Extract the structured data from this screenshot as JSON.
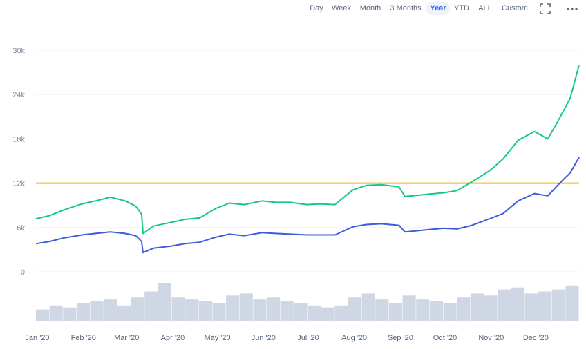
{
  "toolbar": {
    "ranges": [
      "Day",
      "Week",
      "Month",
      "3 Months",
      "Year",
      "YTD",
      "ALL",
      "Custom"
    ],
    "active_range": "Year",
    "icons": [
      "fullscreen-icon",
      "more-options-icon"
    ]
  },
  "colors": {
    "series_green": "#16c784",
    "series_blue": "#3b5bdb",
    "threshold": "#f5b51b",
    "volume": "#cfd6e4",
    "grid": "#eff2f5"
  },
  "chart_data": {
    "type": "line",
    "title": "",
    "xlabel": "",
    "ylabel": "",
    "ylim": [
      0,
      30000
    ],
    "yticks": [
      0,
      6000,
      12000,
      18000,
      24000,
      30000
    ],
    "ytick_labels": [
      "0",
      "6k",
      "12k",
      "18k",
      "24k",
      "30k"
    ],
    "xticks": [
      "Jan '20",
      "Feb '20",
      "Mar '20",
      "Apr '20",
      "May '20",
      "Jun '20",
      "Jul '20",
      "Aug '20",
      "Sep '20",
      "Oct '20",
      "Nov '20",
      "Dec '20"
    ],
    "x": [
      "2020-01-01",
      "2020-01-10",
      "2020-01-20",
      "2020-02-01",
      "2020-02-10",
      "2020-02-20",
      "2020-03-01",
      "2020-03-08",
      "2020-03-12",
      "2020-03-13",
      "2020-03-20",
      "2020-04-01",
      "2020-04-10",
      "2020-04-20",
      "2020-05-01",
      "2020-05-10",
      "2020-05-20",
      "2020-06-01",
      "2020-06-10",
      "2020-06-20",
      "2020-07-01",
      "2020-07-10",
      "2020-07-20",
      "2020-08-01",
      "2020-08-10",
      "2020-08-20",
      "2020-09-01",
      "2020-09-05",
      "2020-09-20",
      "2020-10-01",
      "2020-10-10",
      "2020-10-20",
      "2020-11-01",
      "2020-11-10",
      "2020-11-20",
      "2020-12-01",
      "2020-12-10",
      "2020-12-17",
      "2020-12-25",
      "2020-12-31"
    ],
    "series": [
      {
        "values": [
          7200,
          7600,
          8400,
          9200,
          9600,
          10100,
          9600,
          8900,
          7800,
          5200,
          6200,
          6700,
          7100,
          7300,
          8600,
          9300,
          9100,
          9600,
          9400,
          9400,
          9100,
          9200,
          9100,
          11100,
          11700,
          11800,
          11500,
          10200,
          10500,
          10700,
          11000,
          12200,
          13700,
          15300,
          17800,
          19000,
          18000,
          20500,
          23500,
          28000
        ]
      },
      {
        "values": [
          3800,
          4100,
          4600,
          5000,
          5200,
          5400,
          5200,
          4900,
          4100,
          2600,
          3200,
          3500,
          3800,
          4000,
          4700,
          5100,
          4900,
          5300,
          5200,
          5100,
          5000,
          5000,
          5000,
          6100,
          6400,
          6500,
          6300,
          5400,
          5700,
          5900,
          5800,
          6300,
          7200,
          7900,
          9600,
          10600,
          10300,
          11800,
          13400,
          15500
        ]
      }
    ],
    "threshold_line": 12000,
    "volume_values": [
      30,
      40,
      35,
      45,
      50,
      55,
      40,
      60,
      75,
      95,
      60,
      55,
      50,
      45,
      65,
      70,
      55,
      60,
      50,
      45,
      40,
      35,
      40,
      60,
      70,
      55,
      45,
      65,
      55,
      50,
      45,
      60,
      70,
      65,
      80,
      85,
      70,
      75,
      80,
      90
    ]
  }
}
